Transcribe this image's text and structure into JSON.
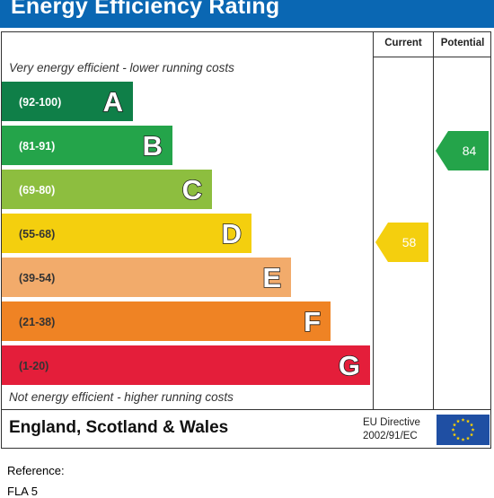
{
  "title": "Energy Efficiency Rating",
  "columns": {
    "current": "Current",
    "potential": "Potential"
  },
  "top_caption": "Very energy efficient - lower running costs",
  "bottom_caption": "Not energy efficient - higher running costs",
  "chart_data": {
    "type": "bar",
    "bands": [
      {
        "range": "(92-100)",
        "letter": "A",
        "color": "#0f7f48",
        "text_color": "#ffffff"
      },
      {
        "range": "(81-91)",
        "letter": "B",
        "color": "#24a44a",
        "text_color": "#ffffff"
      },
      {
        "range": "(69-80)",
        "letter": "C",
        "color": "#8dbe3f",
        "text_color": "#ffffff"
      },
      {
        "range": "(55-68)",
        "letter": "D",
        "color": "#f4cf0e",
        "text_color": "#333333"
      },
      {
        "range": "(39-54)",
        "letter": "E",
        "color": "#f2ab6b",
        "text_color": "#333333"
      },
      {
        "range": "(21-38)",
        "letter": "F",
        "color": "#ef8324",
        "text_color": "#333333"
      },
      {
        "range": "(1-20)",
        "letter": "G",
        "color": "#e41e3a",
        "text_color": "#333333"
      }
    ],
    "current": {
      "value": 58,
      "band": "D",
      "color": "#f4cf0e"
    },
    "potential": {
      "value": 84,
      "band": "B",
      "color": "#24a44a"
    }
  },
  "footer": {
    "region": "England, Scotland & Wales",
    "directive_line1": "EU Directive",
    "directive_line2": "2002/91/EC",
    "flag_color": "#1f4fa3",
    "star_color": "#ffd500"
  },
  "reference_label": "Reference:",
  "reference_value": "FLA 5"
}
